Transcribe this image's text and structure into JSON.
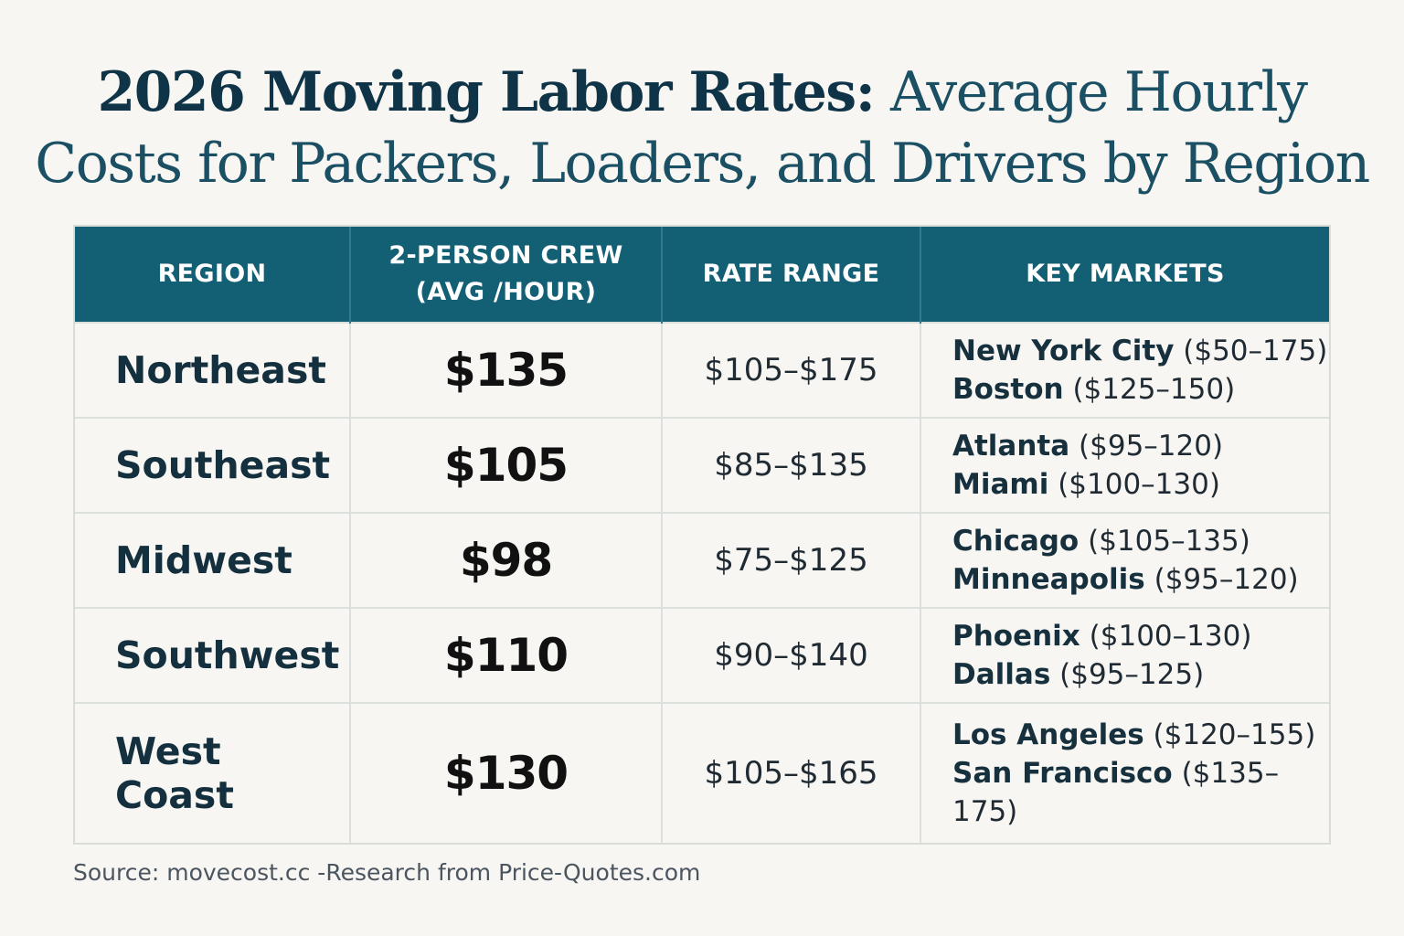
{
  "title": {
    "bold": "2026 Moving Labor Rates:",
    "light_1": "Average Hourly",
    "light_2": "Costs for Packers, Loaders, and Drivers by Region"
  },
  "table": {
    "headers": [
      {
        "line1": "REGION",
        "line2": ""
      },
      {
        "line1": "2-PERSON CREW",
        "line2": "(AVG /HOUR)"
      },
      {
        "line1": "RATE RANGE",
        "line2": ""
      },
      {
        "line1": "KEY MARKETS",
        "line2": ""
      }
    ],
    "rows": [
      {
        "region": "Northeast",
        "avg": "$135",
        "range": "$105–$175",
        "markets": [
          {
            "name": "New York City",
            "range": "($50–175)"
          },
          {
            "name": "Boston",
            "range": "($125–150)"
          }
        ]
      },
      {
        "region": "Southeast",
        "avg": "$105",
        "range": "$85–$135",
        "markets": [
          {
            "name": "Atlanta",
            "range": "($95–120)"
          },
          {
            "name": "Miami",
            "range": "($100–130)"
          }
        ]
      },
      {
        "region": "Midwest",
        "avg": "$98",
        "range": "$75–$125",
        "markets": [
          {
            "name": "Chicago",
            "range": "($105–135)"
          },
          {
            "name": "Minneapolis",
            "range": "($95–120)"
          }
        ]
      },
      {
        "region": "Southwest",
        "avg": "$110",
        "range": "$90–$140",
        "markets": [
          {
            "name": "Phoenix",
            "range": "($100–130)"
          },
          {
            "name": "Dallas",
            "range": "($95–125)"
          }
        ]
      },
      {
        "region": "West Coast",
        "avg": "$130",
        "range": "$105–$165",
        "markets": [
          {
            "name": "Los Angeles",
            "range": "($120–155)"
          },
          {
            "name": "San Francisco",
            "range": "($135–175)"
          }
        ]
      }
    ]
  },
  "source": "Source: movecost.cc -Research from Price-Quotes.com",
  "colors": {
    "header_bg": "#135f74",
    "title": "#123f52",
    "background": "#f7f6f2"
  }
}
